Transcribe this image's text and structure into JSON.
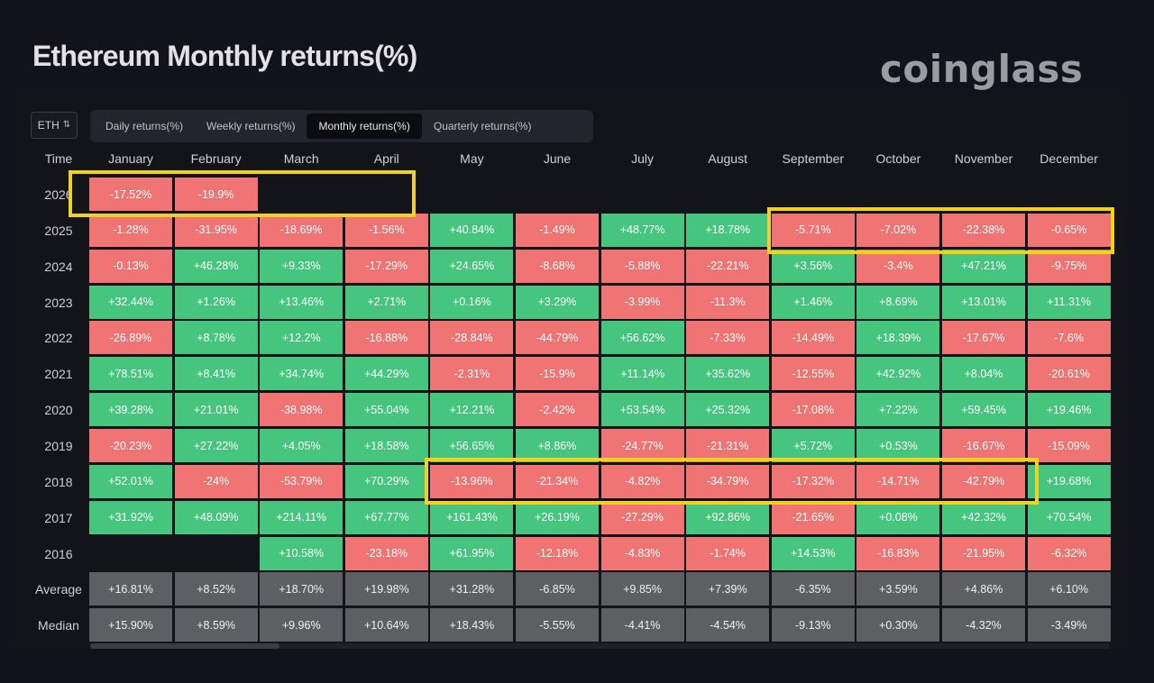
{
  "title": "Ethereum Monthly returns(%)",
  "brand": "coinglass",
  "asset_select": {
    "value": "ETH"
  },
  "tabs": [
    {
      "label": "Daily returns(%)",
      "active": false
    },
    {
      "label": "Weekly returns(%)",
      "active": false
    },
    {
      "label": "Monthly returns(%)",
      "active": true
    },
    {
      "label": "Quarterly returns(%)",
      "active": false
    }
  ],
  "colors": {
    "positive": "#45c57e",
    "negative": "#ef7473",
    "stat": "#5e5f63",
    "highlight": "#f2d21b"
  },
  "table": {
    "columns": [
      "Time",
      "January",
      "February",
      "March",
      "April",
      "May",
      "June",
      "July",
      "August",
      "September",
      "October",
      "November",
      "December"
    ],
    "rows": [
      {
        "year": "2026",
        "values": [
          "-17.52%",
          "-19.9%",
          "",
          "",
          "",
          "",
          "",
          "",
          "",
          "",
          "",
          ""
        ]
      },
      {
        "year": "2025",
        "values": [
          "-1.28%",
          "-31.95%",
          "-18.69%",
          "-1.56%",
          "+40.84%",
          "-1.49%",
          "+48.77%",
          "+18.78%",
          "-5.71%",
          "-7.02%",
          "-22.38%",
          "-0.65%"
        ]
      },
      {
        "year": "2024",
        "values": [
          "-0.13%",
          "+46.28%",
          "+9.33%",
          "-17.29%",
          "+24.65%",
          "-8.68%",
          "-5.88%",
          "-22.21%",
          "+3.56%",
          "-3.4%",
          "+47.21%",
          "-9.75%"
        ]
      },
      {
        "year": "2023",
        "values": [
          "+32.44%",
          "+1.26%",
          "+13.46%",
          "+2.71%",
          "+0.16%",
          "+3.29%",
          "-3.99%",
          "-11.3%",
          "+1.46%",
          "+8.69%",
          "+13.01%",
          "+11.31%"
        ]
      },
      {
        "year": "2022",
        "values": [
          "-26.89%",
          "+8.78%",
          "+12.2%",
          "-16.88%",
          "-28.84%",
          "-44.79%",
          "+56.62%",
          "-7.33%",
          "-14.49%",
          "+18.39%",
          "-17.67%",
          "-7.6%"
        ]
      },
      {
        "year": "2021",
        "values": [
          "+78.51%",
          "+8.41%",
          "+34.74%",
          "+44.29%",
          "-2.31%",
          "-15.9%",
          "+11.14%",
          "+35.62%",
          "-12.55%",
          "+42.92%",
          "+8.04%",
          "-20.61%"
        ]
      },
      {
        "year": "2020",
        "values": [
          "+39.28%",
          "+21.01%",
          "-38.98%",
          "+55.04%",
          "+12.21%",
          "-2.42%",
          "+53.54%",
          "+25.32%",
          "-17.08%",
          "+7.22%",
          "+59.45%",
          "+19.46%"
        ]
      },
      {
        "year": "2019",
        "values": [
          "-20.23%",
          "+27.22%",
          "+4.05%",
          "+18.58%",
          "+56.65%",
          "+8.86%",
          "-24.77%",
          "-21.31%",
          "+5.72%",
          "+0.53%",
          "-16.67%",
          "-15.09%"
        ]
      },
      {
        "year": "2018",
        "values": [
          "+52.01%",
          "-24%",
          "-53.79%",
          "+70.29%",
          "-13.96%",
          "-21.34%",
          "-4.82%",
          "-34.79%",
          "-17.32%",
          "-14.71%",
          "-42.79%",
          "+19.68%"
        ]
      },
      {
        "year": "2017",
        "values": [
          "+31.92%",
          "+48.09%",
          "+214.11%",
          "+67.77%",
          "+161.43%",
          "+26.19%",
          "-27.29%",
          "+92.86%",
          "-21.65%",
          "+0.08%",
          "+42.32%",
          "+70.54%"
        ]
      },
      {
        "year": "2016",
        "values": [
          "",
          "",
          "+10.58%",
          "-23.18%",
          "+61.95%",
          "-12.18%",
          "-4.83%",
          "-1.74%",
          "+14.53%",
          "-16.83%",
          "-21.95%",
          "-6.32%"
        ]
      }
    ],
    "summary": [
      {
        "label": "Average",
        "values": [
          "+16.81%",
          "+8.52%",
          "+18.70%",
          "+19.98%",
          "+31.28%",
          "-6.85%",
          "+9.85%",
          "+7.39%",
          "-6.35%",
          "+3.59%",
          "+4.86%",
          "+6.10%"
        ]
      },
      {
        "label": "Median",
        "values": [
          "+15.90%",
          "+8.59%",
          "+9.96%",
          "+10.64%",
          "+18.43%",
          "-5.55%",
          "-4.41%",
          "-4.54%",
          "-9.13%",
          "+0.30%",
          "-4.32%",
          "-3.49%"
        ]
      }
    ]
  }
}
